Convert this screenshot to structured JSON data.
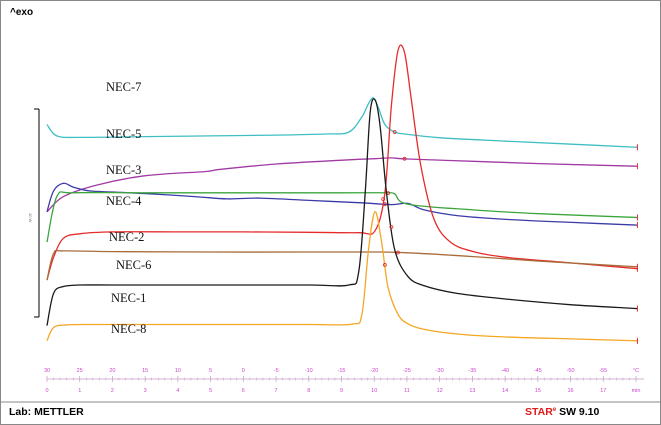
{
  "header": {
    "exo_label": "^exo"
  },
  "footer": {
    "lab": "Lab: METTLER",
    "star": "STAR",
    "sup": "e",
    "sw": " SW 9.10"
  },
  "scale_bar": {
    "label": "10 W"
  },
  "axis": {
    "temp_ticks": [
      "30",
      "25",
      "20",
      "15",
      "10",
      "5",
      "0",
      "-5",
      "-10",
      "-15",
      "-20",
      "-25",
      "-30",
      "-35",
      "-40",
      "-45",
      "-50",
      "-55",
      "°C"
    ],
    "time_ticks": [
      "0",
      "1",
      "2",
      "3",
      "4",
      "5",
      "6",
      "7",
      "8",
      "9",
      "10",
      "11",
      "12",
      "13",
      "14",
      "15",
      "16",
      "17",
      "min"
    ]
  },
  "chart_data": {
    "type": "line",
    "title": "",
    "xlabel": "min",
    "ylabel": "^exo",
    "xlim": [
      0,
      18.2
    ],
    "x_temperature_axis": {
      "values": [
        30,
        -55
      ],
      "unit": "°C"
    },
    "grid": false,
    "series": [
      {
        "name": "NEC-7",
        "color": "#3fbfc4",
        "marker_x": 10.6,
        "x": [
          0,
          0.3,
          1.0,
          3,
          5,
          7,
          8.5,
          9.2,
          9.6,
          9.8,
          9.95,
          10.1,
          10.3,
          10.6,
          11,
          12,
          14,
          16,
          18
        ],
        "y": [
          23.0,
          20.0,
          19.6,
          19.8,
          20.0,
          20.2,
          20.5,
          21.0,
          25.0,
          28.5,
          30.0,
          27.5,
          23.0,
          21.0,
          20.4,
          19.5,
          18.6,
          17.8,
          17.0
        ]
      },
      {
        "name": "NEC-5",
        "color": "#a23aa4",
        "marker_x": 10.9,
        "x": [
          0,
          0.5,
          1.5,
          3,
          4.8,
          5.3,
          7,
          9,
          10,
          10.5,
          11,
          13,
          15,
          18
        ],
        "y": [
          0.0,
          4.0,
          7.0,
          9.5,
          10.6,
          11.2,
          12.6,
          13.6,
          14.0,
          14.2,
          13.9,
          13.3,
          12.7,
          12.0
        ]
      },
      {
        "name": "NEC-3",
        "color": "#3b3ba8",
        "marker_x": 10.3,
        "x": [
          0,
          0.2,
          0.5,
          0.8,
          1.3,
          2,
          3,
          4.5,
          5.5,
          6.5,
          8,
          9.5,
          10.5,
          11,
          11.5,
          12.5,
          14,
          16,
          18
        ],
        "y": [
          0.0,
          5.5,
          7.5,
          6.5,
          5.5,
          5.2,
          4.8,
          4.0,
          3.4,
          3.6,
          3.0,
          2.4,
          1.9,
          2.2,
          0.5,
          -1.0,
          -2.0,
          -2.8,
          -3.5
        ]
      },
      {
        "name": "NEC-4",
        "color": "#3ca53c",
        "marker_x": 10.4,
        "x": [
          0,
          0.3,
          0.8,
          3,
          6,
          9,
          10.3,
          10.6,
          11,
          13,
          15,
          18
        ],
        "y": [
          -8.0,
          4.0,
          5.0,
          5.0,
          5.0,
          5.0,
          5.0,
          4.7,
          2.0,
          0.5,
          -0.5,
          -1.5
        ]
      },
      {
        "name": "NEC-2",
        "color": "#e52b2b",
        "marker_x": 10.25,
        "x": [
          0,
          0.2,
          0.5,
          1,
          2,
          4,
          6,
          8,
          9.5,
          10,
          10.3,
          10.5,
          10.7,
          10.9,
          11.1,
          11.4,
          11.8,
          12.3,
          13,
          14,
          16,
          18
        ],
        "y": [
          -18.0,
          -12.0,
          -7.0,
          -5.8,
          -5.3,
          -5.3,
          -5.3,
          -5.4,
          -5.5,
          -5.0,
          5.0,
          28.0,
          42.5,
          42.0,
          30.0,
          12.0,
          -2.0,
          -8.0,
          -10.5,
          -12.0,
          -13.5,
          -15.0
        ]
      },
      {
        "name": "NEC-6",
        "color": "#a86b3a",
        "marker_x": 10.7,
        "x": [
          0,
          0.2,
          0.5,
          2,
          5,
          8,
          10,
          11,
          13,
          15,
          18
        ],
        "y": [
          -18.0,
          -11.0,
          -10.3,
          -10.5,
          -10.6,
          -10.6,
          -10.6,
          -10.8,
          -11.8,
          -13.0,
          -14.5
        ]
      },
      {
        "name": "NEC-1",
        "color": "#1a1a1a",
        "marker_x": 10.5,
        "x": [
          0,
          0.2,
          0.5,
          1,
          2,
          4,
          6,
          8,
          9.2,
          9.5,
          9.7,
          9.85,
          10.0,
          10.15,
          10.35,
          10.6,
          11,
          11.5,
          12.5,
          14,
          16,
          18
        ],
        "y": [
          -30.0,
          -21.5,
          -19.7,
          -19.3,
          -19.3,
          -19.3,
          -19.3,
          -19.3,
          -19.3,
          -16.0,
          5.0,
          26.0,
          29.5,
          23.0,
          5.0,
          -10.0,
          -17.0,
          -19.5,
          -21.5,
          -23.0,
          -24.5,
          -25.5
        ]
      },
      {
        "name": "NEC-8",
        "color": "#f5a623",
        "marker_x": 10.3,
        "x": [
          0,
          0.2,
          0.6,
          1.5,
          3,
          6,
          8,
          9.3,
          9.6,
          9.8,
          10.0,
          10.2,
          10.4,
          10.7,
          11,
          11.5,
          12.5,
          14,
          16,
          18
        ],
        "y": [
          -34.0,
          -30.5,
          -29.8,
          -29.7,
          -29.7,
          -29.7,
          -29.7,
          -29.6,
          -27.0,
          -10.0,
          0.0,
          -8.0,
          -20.0,
          -27.0,
          -29.5,
          -31.0,
          -32.2,
          -33.0,
          -33.5,
          -34.0
        ]
      }
    ]
  }
}
